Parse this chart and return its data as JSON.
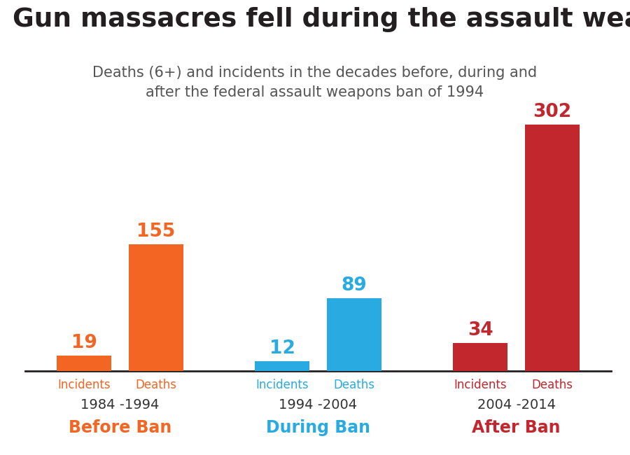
{
  "title": "Gun massacres fell during the assault weapons ban",
  "subtitle_line1": "Deaths (6+) and incidents in the decades before, during and",
  "subtitle_line2": "after the federal assault weapons ban of 1994",
  "bars": [
    {
      "label": "Incidents",
      "value": 19,
      "color": "#F26522",
      "group": 0
    },
    {
      "label": "Deaths",
      "value": 155,
      "color": "#F26522",
      "group": 0
    },
    {
      "label": "Incidents",
      "value": 12,
      "color": "#29ABE2",
      "group": 1
    },
    {
      "label": "Deaths",
      "value": 89,
      "color": "#29ABE2",
      "group": 1
    },
    {
      "label": "Incidents",
      "value": 34,
      "color": "#C1272D",
      "group": 2
    },
    {
      "label": "Deaths",
      "value": 302,
      "color": "#C1272D",
      "group": 2
    }
  ],
  "group_labels": [
    {
      "text": "1984 -1994",
      "color": "#333333"
    },
    {
      "text": "1994 -2004",
      "color": "#333333"
    },
    {
      "text": "2004 -2014",
      "color": "#333333"
    }
  ],
  "ban_labels": [
    {
      "text": "Before Ban",
      "color": "#F26522"
    },
    {
      "text": "During Ban",
      "color": "#29ABE2"
    },
    {
      "text": "After Ban",
      "color": "#C1272D"
    }
  ],
  "incident_label_colors": [
    "#F26522",
    "#29ABE2",
    "#C1272D"
  ],
  "death_label_colors": [
    "#F26522",
    "#29ABE2",
    "#C1272D"
  ],
  "title_color": "#231F20",
  "subtitle_color": "#555555",
  "background_color": "#FFFFFF",
  "bar_width": 0.65,
  "ylim": [
    0,
    340
  ],
  "value_fontsize": 19,
  "label_fontsize": 12,
  "group_fontsize": 14,
  "ban_fontsize": 17,
  "title_fontsize": 27,
  "subtitle_fontsize": 15
}
